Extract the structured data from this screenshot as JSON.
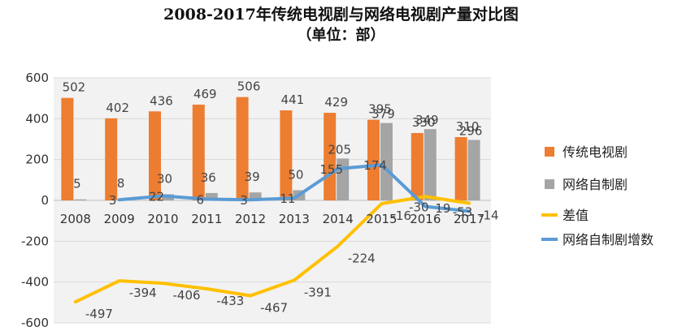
{
  "chart_data": {
    "type": "bar",
    "title": "2008-2017年传统电视剧与网络电视剧产量对比图",
    "subtitle": "（单位：部）",
    "categories": [
      "2008",
      "2009",
      "2010",
      "2011",
      "2012",
      "2013",
      "2014",
      "2015",
      "2016",
      "2017"
    ],
    "ylim": [
      -600,
      600
    ],
    "yticks": [
      "600",
      "400",
      "200",
      "0",
      "-200",
      "-400",
      "-600"
    ],
    "ytick_values": [
      600,
      400,
      200,
      0,
      -200,
      -400,
      -600
    ],
    "grid": true,
    "legend_position": "right",
    "series": [
      {
        "name": "传统电视剧",
        "type": "bar",
        "color": "#ED7D31",
        "values": [
          502,
          402,
          436,
          469,
          506,
          441,
          429,
          395,
          330,
          310
        ],
        "labels": [
          "502",
          "402",
          "436",
          "469",
          "506",
          "441",
          "429",
          "395",
          "330",
          "310"
        ]
      },
      {
        "name": "网络自制剧",
        "type": "bar",
        "color": "#A5A5A5",
        "values": [
          5,
          8,
          30,
          36,
          39,
          50,
          205,
          379,
          349,
          296
        ],
        "labels": [
          "5",
          "8",
          "30",
          "36",
          "39",
          "50",
          "205",
          "379",
          "349",
          "296"
        ]
      },
      {
        "name": "差值",
        "type": "line",
        "color": "#FFC000",
        "values": [
          -497,
          -394,
          -406,
          -433,
          -467,
          -391,
          -224,
          -16,
          19,
          -14
        ],
        "labels": [
          "-497",
          "-394",
          "-406",
          "-433",
          "-467",
          "-391",
          "-224",
          "-16",
          "19",
          "-14"
        ]
      },
      {
        "name": "网络自制剧增数",
        "type": "line",
        "color": "#5B9BD5",
        "values": [
          null,
          3,
          22,
          6,
          3,
          11,
          155,
          174,
          -30,
          -53
        ],
        "labels": [
          "",
          "3",
          "22",
          "6",
          "3",
          "11",
          "155",
          "174",
          "-30",
          "-53"
        ]
      }
    ]
  }
}
